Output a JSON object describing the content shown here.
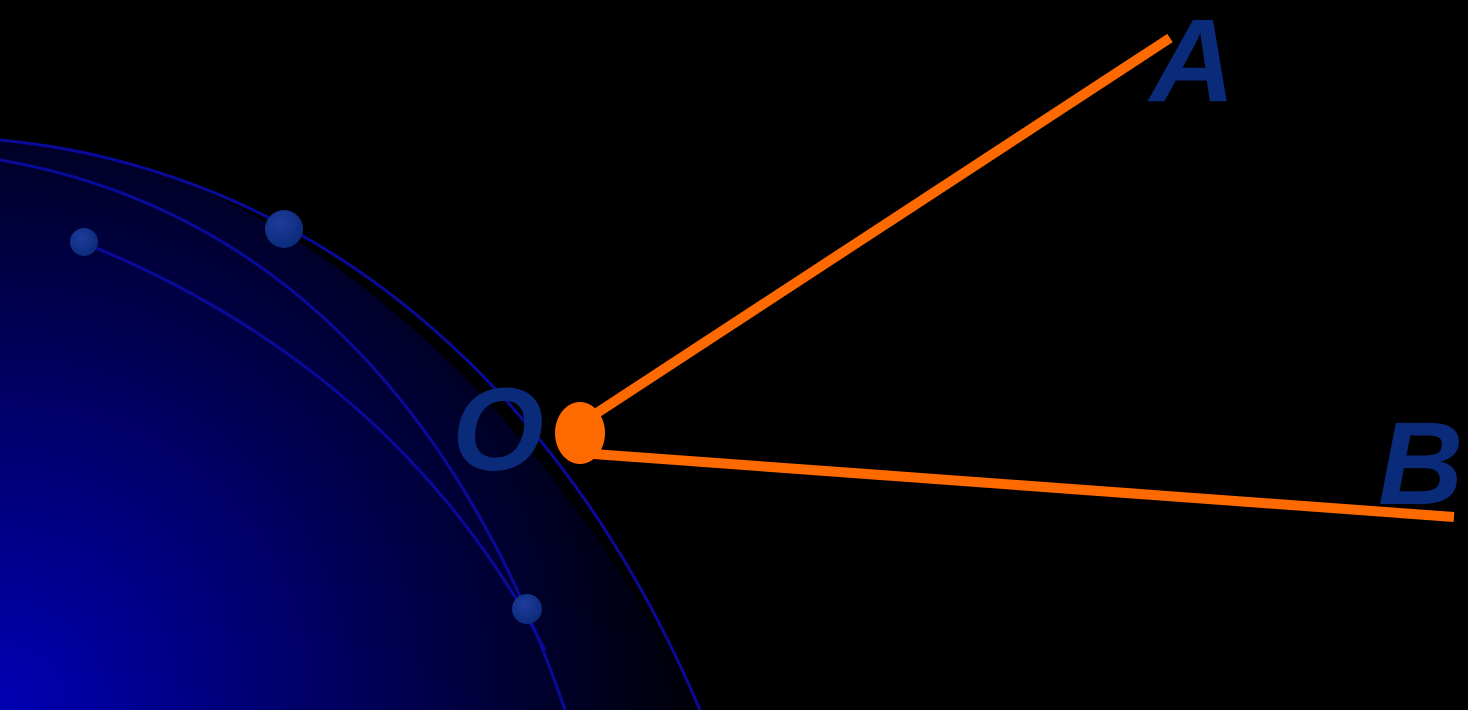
{
  "diagram": {
    "points": {
      "a": {
        "label": "A"
      },
      "o": {
        "label": "O"
      },
      "b": {
        "label": "B"
      }
    }
  },
  "colors": {
    "background": "#000000",
    "ray": "#ff6a00",
    "vertex": "#ff6a00",
    "label": "#0a2a7a",
    "glow": "#0000b4",
    "orbit": "#0a0a9a",
    "planet": "#0a2a78"
  }
}
